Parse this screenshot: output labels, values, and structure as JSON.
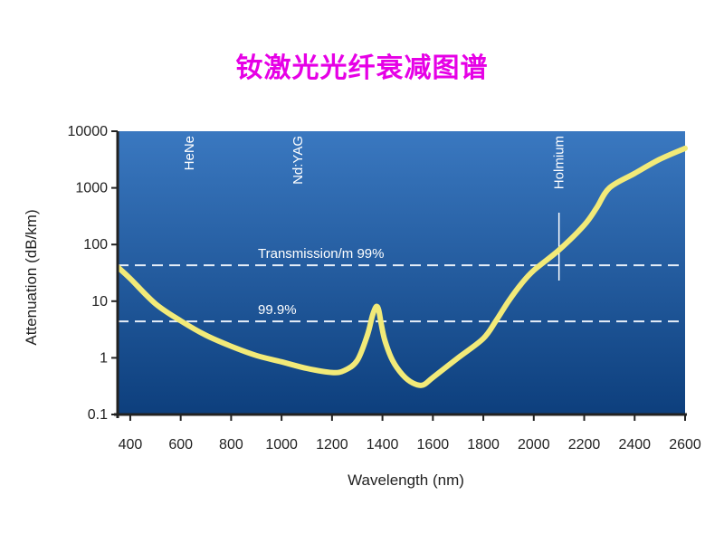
{
  "page": {
    "title": "钕激光光纤衰减图谱"
  },
  "chart_data": {
    "type": "line",
    "title": "",
    "xlabel": "Wavelength (nm)",
    "ylabel": "Attenuation (dB/km)",
    "xlim": [
      350,
      2600
    ],
    "ylim": [
      0.1,
      10000
    ],
    "yscale": "log",
    "grid": false,
    "x_ticks": [
      400,
      600,
      800,
      1000,
      1200,
      1400,
      1600,
      1800,
      2000,
      2200,
      2400,
      2600
    ],
    "y_ticks": [
      {
        "value": 10000,
        "label": "10000"
      },
      {
        "value": 1000,
        "label": "1000"
      },
      {
        "value": 100,
        "label": "100"
      },
      {
        "value": 10,
        "label": "10"
      },
      {
        "value": 1,
        "label": "1"
      },
      {
        "value": 0.1,
        "label": "0.1"
      }
    ],
    "series": [
      {
        "color": "#f2ea78",
        "x": [
          350,
          400,
          500,
          600,
          700,
          800,
          900,
          1000,
          1100,
          1200,
          1250,
          1300,
          1340,
          1360,
          1375,
          1385,
          1395,
          1410,
          1440,
          1480,
          1520,
          1560,
          1600,
          1700,
          1800,
          1850,
          1900,
          1950,
          2000,
          2100,
          2200,
          2250,
          2300,
          2400,
          2500,
          2600
        ],
        "y": [
          40,
          25,
          9,
          4.5,
          2.5,
          1.6,
          1.1,
          0.85,
          0.65,
          0.55,
          0.6,
          0.9,
          2.5,
          5.5,
          8,
          7,
          4,
          2,
          0.9,
          0.5,
          0.36,
          0.33,
          0.45,
          1.0,
          2.2,
          4.5,
          10,
          20,
          35,
          80,
          220,
          450,
          1000,
          1800,
          3200,
          5000
        ]
      }
    ],
    "reference_lines": [
      {
        "label": "Transmission/m 99%",
        "y": 43
      },
      {
        "label": "99.9%",
        "y": 4.4
      }
    ],
    "annotations": [
      {
        "label": "HeNe",
        "x": 633
      },
      {
        "label": "Nd:YAG",
        "x": 1064
      },
      {
        "label": "Holmium",
        "x": 2100
      }
    ]
  },
  "colors": {
    "background_top": "#3a78c0",
    "background_bottom": "#0d3f7d",
    "curve": "#f2ea78",
    "reference_lines": "#e6eef8",
    "title": "#e600e6",
    "axis": "#222222"
  }
}
